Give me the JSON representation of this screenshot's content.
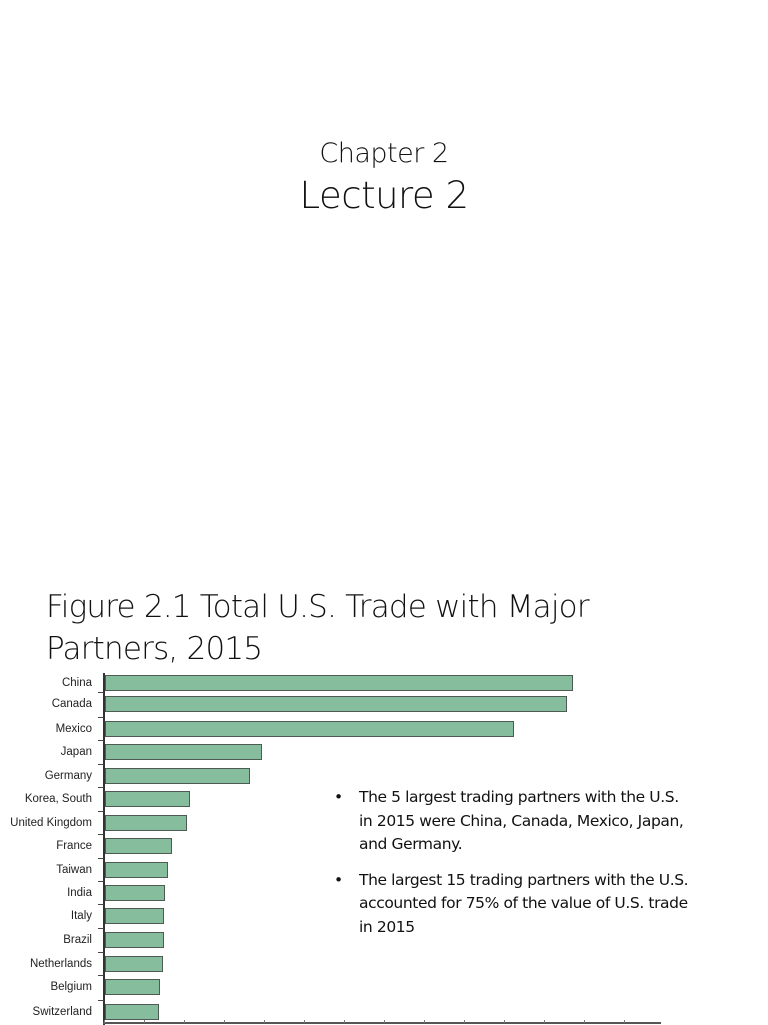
{
  "slide1": {
    "chapter": "Chapter 2",
    "lecture": "Lecture 2"
  },
  "slide2": {
    "title": "Figure 2.1 Total U.S. Trade with Major Partners, 2015",
    "bullets": [
      {
        "symbol": "•",
        "text": "The 5 largest trading partners with the U.S. in 2015 were China, Canada, Mexico, Japan, and Germany."
      },
      {
        "symbol": "•",
        "text": "The largest 15 trading partners with the U.S. accounted for 75% of the value of U.S. trade in 2015"
      }
    ]
  },
  "colors": {
    "bar_fill": "#86bd9d",
    "bar_outline": "#4f5a54",
    "axis": "#333333",
    "text": "#111111"
  },
  "chart_data": {
    "type": "bar",
    "orientation": "horizontal",
    "title": "Figure 2.1 Total U.S. Trade with Major Partners, 2015",
    "xlabel": "",
    "ylabel": "",
    "categories": [
      "China",
      "Canada",
      "Mexico",
      "Japan",
      "Germany",
      "Korea, South",
      "United Kingdom",
      "France",
      "Taiwan",
      "India",
      "Italy",
      "Brazil",
      "Netherlands",
      "Belgium",
      "Switzerland"
    ],
    "values": [
      598,
      590,
      522,
      200,
      185,
      108,
      105,
      85,
      80,
      77,
      76,
      75,
      74,
      70,
      69
    ],
    "value_units": "relative (axis tick labels not visible; estimated, approx. billions USD)",
    "xlim": [
      0,
      710
    ],
    "grid": false,
    "legend": null
  }
}
